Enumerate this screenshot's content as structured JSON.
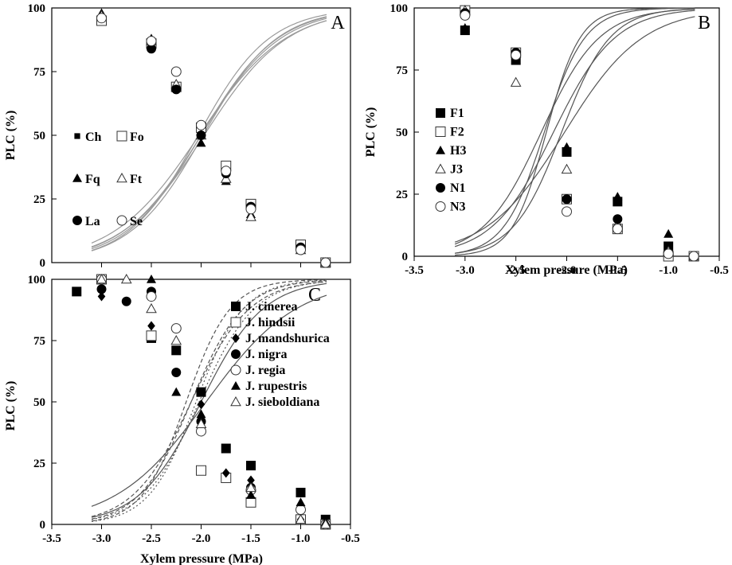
{
  "chart_data": [
    {
      "panel": "A",
      "type": "scatter",
      "ylabel": "PLC (%)",
      "xlabel": "",
      "xlim": [
        -3.5,
        -0.5
      ],
      "ylim": [
        0,
        100
      ],
      "yticks": [
        "0",
        "25",
        "50",
        "75",
        "100"
      ],
      "legend_columns": 2,
      "legend_placement": "left",
      "fits": {
        "style": "solid",
        "color": "#9a9a9a",
        "shared_half_point": -2.0
      },
      "series": [
        {
          "name": "Ch",
          "marker": "small-square",
          "x": [
            -3.0,
            -2.5,
            -2.25,
            -2.0,
            -1.75,
            -1.5,
            -1.0,
            -0.75
          ],
          "y": [
            96,
            85,
            68,
            52,
            37,
            22,
            6,
            0
          ]
        },
        {
          "name": "Fo",
          "marker": "open-square",
          "x": [
            -3.0,
            -2.5,
            -2.25,
            -2.0,
            -1.75,
            -1.5,
            -1.0,
            -0.75
          ],
          "y": [
            95,
            86,
            69,
            53,
            38,
            23,
            7,
            0
          ]
        },
        {
          "name": "Fq",
          "marker": "filled-triangle",
          "x": [
            -3.0,
            -2.5,
            -2.25,
            -2.0,
            -1.75,
            -1.5,
            -1.0,
            -0.75
          ],
          "y": [
            98,
            88,
            70,
            47,
            32,
            19,
            6,
            0
          ]
        },
        {
          "name": "Ft",
          "marker": "open-triangle",
          "x": [
            -3.0,
            -2.5,
            -2.25,
            -2.0,
            -1.75,
            -1.5,
            -1.0,
            -0.75
          ],
          "y": [
            97,
            87,
            70,
            50,
            33,
            18,
            5,
            0
          ]
        },
        {
          "name": "La",
          "marker": "filled-circle",
          "x": [
            -3.0,
            -2.5,
            -2.25,
            -2.0,
            -1.75,
            -1.5,
            -1.0,
            -0.75
          ],
          "y": [
            96,
            84,
            68,
            50,
            35,
            22,
            6,
            0
          ]
        },
        {
          "name": "Se",
          "marker": "open-circle",
          "x": [
            -3.0,
            -2.5,
            -2.25,
            -2.0,
            -1.75,
            -1.5,
            -1.0,
            -0.75
          ],
          "y": [
            96,
            87,
            75,
            54,
            36,
            21,
            5,
            0
          ]
        }
      ]
    },
    {
      "panel": "B",
      "type": "scatter",
      "ylabel": "PLC (%)",
      "xlabel": "Xylem pressure (MPa)",
      "xlim": [
        -3.5,
        -0.5
      ],
      "ylim": [
        0,
        100
      ],
      "xticks": [
        "-3.5",
        "-3.0",
        "-2.5",
        "-2.0",
        "-1.5",
        "-1.0",
        "-0.5"
      ],
      "yticks": [
        "0",
        "25",
        "50",
        "75",
        "100"
      ],
      "legend_placement": "left",
      "fits": {
        "style": "solid",
        "color": "#555555"
      },
      "series": [
        {
          "name": "F1",
          "marker": "filled-square",
          "x": [
            -3.0,
            -2.5,
            -2.0,
            -1.5,
            -1.0,
            -0.75
          ],
          "y": [
            91,
            79,
            42,
            22,
            4,
            0
          ]
        },
        {
          "name": "F2",
          "marker": "open-square",
          "x": [
            -3.0,
            -2.5,
            -2.0,
            -1.5,
            -1.0,
            -0.75
          ],
          "y": [
            99,
            82,
            23,
            11,
            0,
            0
          ]
        },
        {
          "name": "H3",
          "marker": "filled-triangle",
          "x": [
            -3.0,
            -2.5,
            -2.0,
            -1.5,
            -1.0,
            -0.75
          ],
          "y": [
            92,
            79,
            44,
            24,
            9,
            0
          ]
        },
        {
          "name": "J3",
          "marker": "open-triangle",
          "x": [
            -3.0,
            -2.5,
            -2.0,
            -1.5,
            -1.0,
            -0.75
          ],
          "y": [
            99,
            70,
            35,
            13,
            2,
            0
          ]
        },
        {
          "name": "N1",
          "marker": "filled-circle",
          "x": [
            -3.0,
            -2.5,
            -2.0,
            -1.5,
            -1.0,
            -0.75
          ],
          "y": [
            98,
            82,
            23,
            15,
            1,
            0
          ]
        },
        {
          "name": "N3",
          "marker": "open-circle",
          "x": [
            -3.0,
            -2.5,
            -2.0,
            -1.5,
            -1.0,
            -0.75
          ],
          "y": [
            97,
            81,
            18,
            11,
            1,
            0
          ]
        }
      ]
    },
    {
      "panel": "C",
      "type": "scatter",
      "ylabel": "PLC (%)",
      "xlabel": "Xylem pressure (MPa)",
      "xlim": [
        -3.5,
        -0.5
      ],
      "ylim": [
        0,
        100
      ],
      "xticks": [
        "-3.5",
        "-3.0",
        "-2.5",
        "-2.0",
        "-1.5",
        "-1.0",
        "-0.5"
      ],
      "yticks": [
        "0",
        "25",
        "50",
        "75",
        "100"
      ],
      "legend_placement": "top-right",
      "fits": {
        "style": "solid and dashed",
        "color": "#555555"
      },
      "series": [
        {
          "name": "J. cinerea",
          "marker": "filled-square",
          "x": [
            -3.25,
            -2.5,
            -2.25,
            -2.0,
            -1.75,
            -1.5,
            -1.0,
            -0.75
          ],
          "y": [
            95,
            76,
            71,
            54,
            31,
            24,
            13,
            2
          ]
        },
        {
          "name": "J. hindsii",
          "marker": "open-square",
          "x": [
            -3.0,
            -2.5,
            -2.0,
            -1.75,
            -1.5,
            -1.0,
            -0.75
          ],
          "y": [
            100,
            77,
            22,
            19,
            9,
            2,
            0
          ]
        },
        {
          "name": "J. mandshurica",
          "marker": "filled-diamond",
          "x": [
            -3.0,
            -2.5,
            -2.0,
            -1.75,
            -1.5,
            -1.0,
            -0.75
          ],
          "y": [
            93,
            81,
            49,
            21,
            18,
            2,
            1
          ]
        },
        {
          "name": "J. nigra",
          "marker": "filled-circle",
          "x": [
            -3.0,
            -2.75,
            -2.5,
            -2.25,
            -2.0,
            -1.5,
            -1.0,
            -0.75
          ],
          "y": [
            96,
            91,
            95,
            62,
            42,
            15,
            6,
            0
          ]
        },
        {
          "name": "J. regia",
          "marker": "open-circle",
          "x": [
            -3.0,
            -2.5,
            -2.25,
            -2.0,
            -1.5,
            -1.0,
            -0.75
          ],
          "y": [
            100,
            93,
            80,
            38,
            14,
            6,
            0
          ]
        },
        {
          "name": "J. rupestris",
          "marker": "filled-triangle",
          "x": [
            -3.0,
            -2.75,
            -2.5,
            -2.25,
            -2.0,
            -1.5,
            -1.0,
            -0.75
          ],
          "y": [
            100,
            100,
            100,
            54,
            45,
            12,
            9,
            1
          ]
        },
        {
          "name": "J. sieboldiana",
          "marker": "open-triangle",
          "x": [
            -3.0,
            -2.75,
            -2.5,
            -2.25,
            -2.0,
            -1.5,
            -1.0,
            -0.75
          ],
          "y": [
            100,
            100,
            88,
            75,
            41,
            15,
            2,
            0
          ]
        }
      ]
    }
  ]
}
